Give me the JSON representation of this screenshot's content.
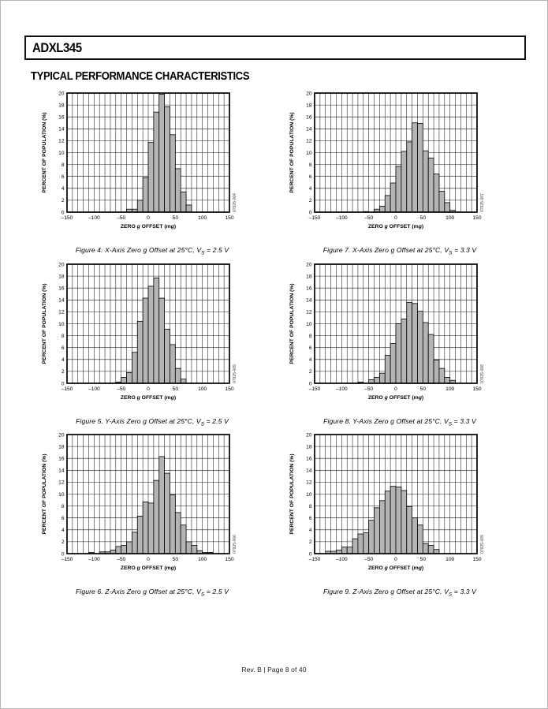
{
  "page": {
    "part_number": "ADXL345",
    "section_title": "TYPICAL PERFORMANCE CHARACTERISTICS",
    "footer": "Rev. B | Page 8 of 40"
  },
  "chart_data": [
    {
      "type": "bar",
      "title": "X-Axis Zero g Offset at 25°C, Vs = 2.5 V",
      "caption": {
        "pre": "Figure 4. X-Axis Zero g Offset at 25°C, V",
        "sub": "S",
        "post": " = 2.5 V"
      },
      "code": "07925-004",
      "xlabel": "ZERO g OFFSET (mg)",
      "ylabel": "PERCENT OF POPULATION (%)",
      "xlim": [
        -150,
        150
      ],
      "ylim": [
        0,
        20
      ],
      "x_ticks": [
        -150,
        -100,
        -50,
        0,
        50,
        100,
        150
      ],
      "y_ticks": [
        0,
        2,
        4,
        6,
        8,
        10,
        12,
        14,
        16,
        18,
        20
      ],
      "grid_step_x": 10,
      "grid_step_y": 2,
      "bin_width": 10,
      "bin_left": [
        -40,
        -30,
        -20,
        -10,
        0,
        10,
        20,
        30,
        40,
        50,
        60,
        70
      ],
      "values": [
        0.5,
        0.5,
        2.0,
        5.8,
        11.7,
        16.8,
        19.8,
        17.7,
        13.0,
        7.3,
        3.4,
        1.2
      ]
    },
    {
      "type": "bar",
      "title": "X-Axis Zero g Offset at 25°C, Vs = 3.3 V",
      "caption": {
        "pre": "Figure 7. X-Axis Zero g Offset at 25°C, V",
        "sub": "S",
        "post": " = 3.3 V"
      },
      "code": "07925-007",
      "xlabel": "ZERO g OFFSET (mg)",
      "ylabel": "PERCENT OF POPULATION (%)",
      "xlim": [
        -150,
        150
      ],
      "ylim": [
        0,
        20
      ],
      "x_ticks": [
        -150,
        -100,
        -50,
        0,
        50,
        100,
        150
      ],
      "y_ticks": [
        0,
        2,
        4,
        6,
        8,
        10,
        12,
        14,
        16,
        18,
        20
      ],
      "grid_step_x": 10,
      "grid_step_y": 2,
      "bin_width": 10,
      "bin_left": [
        -60,
        -50,
        -40,
        -30,
        -20,
        -10,
        0,
        10,
        20,
        30,
        40,
        50,
        60,
        70,
        80,
        90,
        100
      ],
      "values": [
        0.1,
        0,
        0.5,
        1.0,
        2.8,
        4.9,
        7.7,
        10.2,
        11.8,
        15.0,
        14.9,
        10.3,
        9.1,
        6.4,
        3.5,
        1.6,
        0.3
      ]
    },
    {
      "type": "bar",
      "title": "Y-Axis Zero g Offset at 25°C, Vs = 2.5 V",
      "caption": {
        "pre": "Figure 5. Y-Axis Zero g Offset at 25°C, V",
        "sub": "S",
        "post": " = 2.5 V"
      },
      "code": "07925-005",
      "xlabel": "ZERO g OFFSET (mg)",
      "ylabel": "PERCENT OF POPULATION (%)",
      "xlim": [
        -150,
        150
      ],
      "ylim": [
        0,
        20
      ],
      "x_ticks": [
        -150,
        -100,
        -50,
        0,
        50,
        100,
        150
      ],
      "y_ticks": [
        0,
        2,
        4,
        6,
        8,
        10,
        12,
        14,
        16,
        18,
        20
      ],
      "grid_step_x": 10,
      "grid_step_y": 2,
      "bin_width": 10,
      "bin_left": [
        -60,
        -50,
        -40,
        -30,
        -20,
        -10,
        0,
        10,
        20,
        30,
        40,
        50,
        60
      ],
      "values": [
        0.2,
        1.0,
        1.8,
        5.2,
        10.4,
        14.3,
        16.3,
        17.7,
        14.3,
        9.1,
        6.5,
        2.5,
        0.7
      ]
    },
    {
      "type": "bar",
      "title": "Y-Axis Zero g Offset at 25°C, Vs = 3.3 V",
      "caption": {
        "pre": "Figure 8. Y-Axis Zero g Offset at 25°C, V",
        "sub": "S",
        "post": " = 3.3 V"
      },
      "code": "07925-008",
      "xlabel": "ZERO g OFFSET (mg)",
      "ylabel": "PERCENT OF POPULATION (%)",
      "xlim": [
        -150,
        150
      ],
      "ylim": [
        0,
        20
      ],
      "x_ticks": [
        -150,
        -100,
        -50,
        0,
        50,
        100,
        150
      ],
      "y_ticks": [
        0,
        2,
        4,
        6,
        8,
        10,
        12,
        14,
        16,
        18,
        20
      ],
      "grid_step_x": 10,
      "grid_step_y": 2,
      "bin_width": 10,
      "bin_left": [
        -70,
        -60,
        -50,
        -40,
        -30,
        -20,
        -10,
        0,
        10,
        20,
        30,
        40,
        50,
        60,
        70,
        80,
        90,
        100
      ],
      "values": [
        0.2,
        0,
        0.6,
        1.0,
        1.7,
        4.7,
        6.7,
        10.0,
        10.8,
        13.6,
        13.4,
        12.1,
        10.2,
        8.2,
        3.9,
        2.5,
        1.0,
        0.5
      ]
    },
    {
      "type": "bar",
      "title": "Z-Axis Zero g Offset at 25°C, Vs = 2.5 V",
      "caption": {
        "pre": "Figure 6. Z-Axis Zero g Offset at 25°C, V",
        "sub": "S",
        "post": " = 2.5 V"
      },
      "code": "07925-006",
      "xlabel": "ZERO g OFFSET (mg)",
      "ylabel": "PERCENT OF POPULATION (%)",
      "xlim": [
        -150,
        150
      ],
      "ylim": [
        0,
        20
      ],
      "x_ticks": [
        -150,
        -100,
        -50,
        0,
        50,
        100,
        150
      ],
      "y_ticks": [
        0,
        2,
        4,
        6,
        8,
        10,
        12,
        14,
        16,
        18,
        20
      ],
      "grid_step_x": 10,
      "grid_step_y": 2,
      "bin_width": 10,
      "bin_left": [
        -110,
        -100,
        -90,
        -80,
        -70,
        -60,
        -50,
        -40,
        -30,
        -20,
        -10,
        0,
        10,
        20,
        30,
        40,
        50,
        60,
        70,
        80,
        90,
        100,
        110
      ],
      "values": [
        0.2,
        0,
        0.3,
        0.3,
        0.6,
        1.2,
        1.4,
        2.0,
        3.6,
        6.3,
        8.7,
        8.5,
        12.3,
        16.3,
        13.5,
        9.9,
        6.9,
        4.8,
        2.0,
        1.4,
        0.5,
        0.2,
        0.2
      ]
    },
    {
      "type": "bar",
      "title": "Z-Axis Zero g Offset at 25°C, Vs = 3.3 V",
      "caption": {
        "pre": "Figure 9. Z-Axis Zero g Offset at 25°C, V",
        "sub": "S",
        "post": " = 3.3 V"
      },
      "code": "07925-009",
      "xlabel": "ZERO g OFFSET (mg)",
      "ylabel": "PERCENT OF POPULATION (%)",
      "xlim": [
        -150,
        150
      ],
      "ylim": [
        0,
        20
      ],
      "x_ticks": [
        -150,
        -100,
        -50,
        0,
        50,
        100,
        150
      ],
      "y_ticks": [
        0,
        2,
        4,
        6,
        8,
        10,
        12,
        14,
        16,
        18,
        20
      ],
      "grid_step_x": 10,
      "grid_step_y": 2,
      "bin_width": 10,
      "bin_left": [
        -130,
        -120,
        -110,
        -100,
        -90,
        -80,
        -70,
        -60,
        -50,
        -40,
        -30,
        -20,
        -10,
        0,
        10,
        20,
        30,
        40,
        50,
        60,
        70
      ],
      "values": [
        0.4,
        0.4,
        0.6,
        1.1,
        1.1,
        2.5,
        3.3,
        3.5,
        5.6,
        7.7,
        8.9,
        10.5,
        11.3,
        11.2,
        10.6,
        7.9,
        6.0,
        4.8,
        1.7,
        1.4,
        0.7
      ]
    }
  ],
  "style": {
    "bar_fill": "#b4b4b4",
    "bar_stroke": "#000000",
    "grid_color": "#1a1a1a",
    "frame_color": "#000000"
  }
}
